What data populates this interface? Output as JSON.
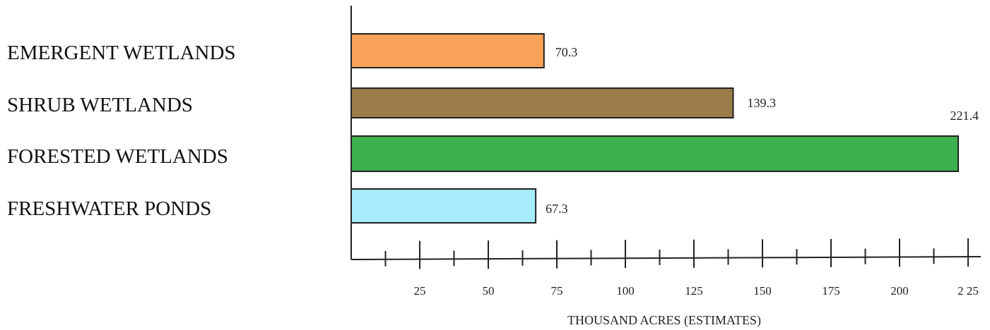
{
  "chart_data": {
    "type": "bar",
    "orientation": "horizontal",
    "categories": [
      "EMERGENT WETLANDS",
      "SHRUB WETLANDS",
      "FORESTED WETLANDS",
      "FRESHWATER PONDS"
    ],
    "values": [
      70.3,
      139.3,
      221.4,
      67.3
    ],
    "value_labels": [
      "70.3",
      "139.3",
      "221.4",
      "67.3"
    ],
    "colors": [
      "#f9a25a",
      "#9a7d4a",
      "#3cb04e",
      "#a6ecfb"
    ],
    "title": "",
    "xlabel": "THOUSAND ACRES (ESTIMATES)",
    "ylabel": "",
    "xlim": [
      0,
      225
    ],
    "x_ticks": [
      25,
      50,
      75,
      100,
      125,
      150,
      175,
      200,
      225
    ],
    "x_tick_labels": [
      "25",
      "50",
      "75",
      "100",
      "125",
      "150",
      "175",
      "200",
      "2 25"
    ],
    "minor_ticks": [
      12.5,
      37.5,
      62.5,
      87.5,
      112.5,
      137.5,
      162.5,
      187.5,
      212.5
    ],
    "grid": false,
    "legend": "none"
  }
}
